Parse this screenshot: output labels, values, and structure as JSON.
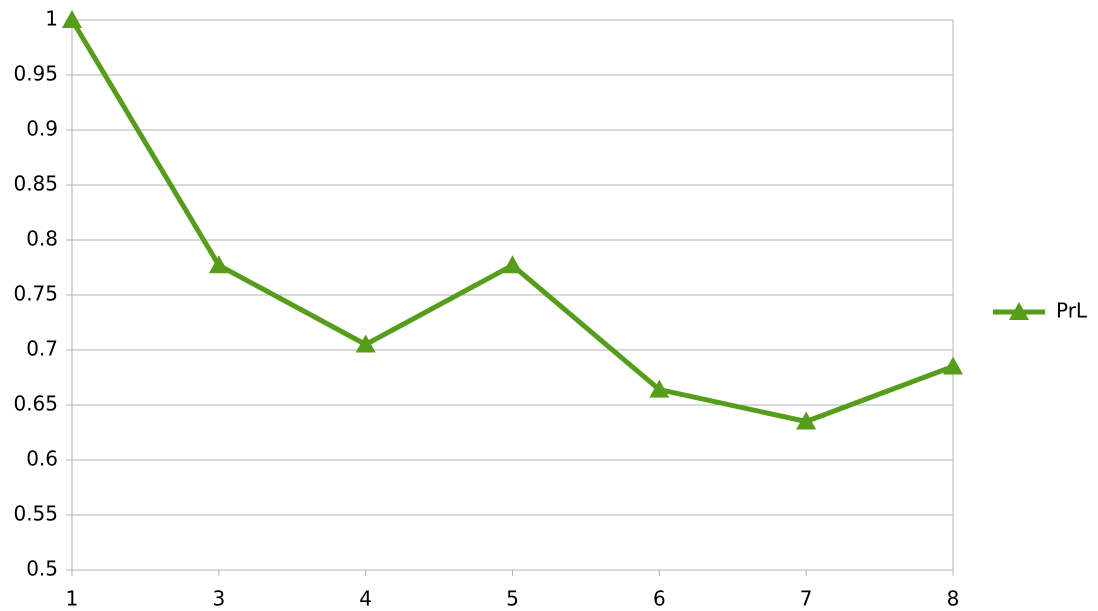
{
  "chart_data": {
    "type": "line",
    "categories": [
      "1",
      "3",
      "4",
      "5",
      "6",
      "7",
      "8"
    ],
    "series": [
      {
        "name": "PrL",
        "color": "#579d1c",
        "values": [
          1,
          0.777,
          0.705,
          0.777,
          0.664,
          0.635,
          0.685
        ]
      }
    ],
    "ylim": [
      0.5,
      1
    ],
    "yticks": [
      0.5,
      0.55,
      0.6,
      0.65,
      0.7,
      0.75,
      0.8,
      0.85,
      0.9,
      0.95,
      1
    ],
    "grid": true,
    "legend": "right"
  }
}
